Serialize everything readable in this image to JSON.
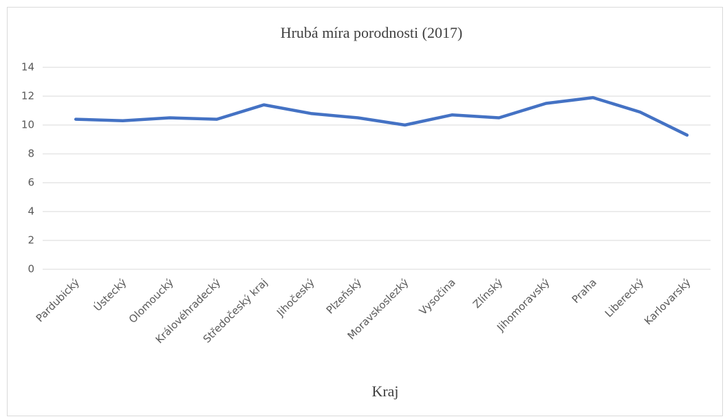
{
  "chart_data": {
    "type": "line",
    "title": "Hrubá míra porodnosti (2017)",
    "x_label": "Kraj",
    "categories": [
      "Pardubický",
      "Ústecký",
      "Olomoucký",
      "Královéhradecký",
      "Středočeský kraj",
      "Jihočeský",
      "Plzeňský",
      "Moravskoslezký",
      "Vysočina",
      "Zlínský",
      "Jihomoravský",
      "Praha",
      "Liberecký",
      "Karlovarský"
    ],
    "values": [
      10.4,
      10.3,
      10.5,
      10.4,
      11.4,
      10.8,
      10.5,
      10.0,
      10.7,
      10.5,
      11.5,
      11.9,
      10.9,
      9.3
    ],
    "color": "#4472c4",
    "ylim": [
      0,
      14
    ],
    "yticks": [
      0,
      2,
      4,
      6,
      8,
      10,
      12,
      14
    ],
    "grid": true
  }
}
